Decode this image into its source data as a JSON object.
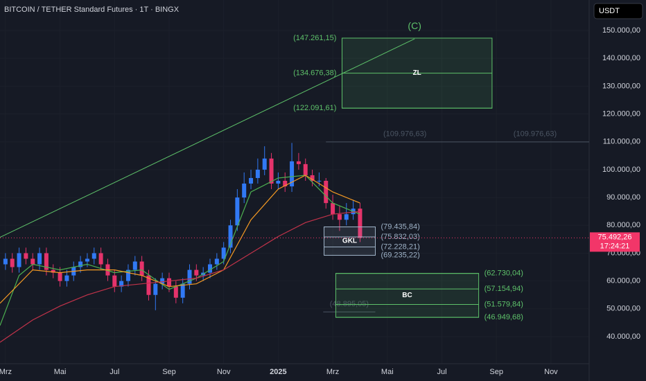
{
  "chart_data": {
    "type": "candlestick",
    "title": "BITCOIN / TETHER Standard Futures · 1T · BINGX",
    "currency": "USDT",
    "up_color": "#3179f5",
    "down_color": "#e5336b",
    "xlim": [
      -0.2,
      21.4
    ],
    "xticks": [
      {
        "value": 0,
        "label": "Mrz"
      },
      {
        "value": 2,
        "label": "Mai"
      },
      {
        "value": 4,
        "label": "Jul"
      },
      {
        "value": 6,
        "label": "Sep"
      },
      {
        "value": 8,
        "label": "Nov"
      },
      {
        "value": 10,
        "label": "2025"
      },
      {
        "value": 12,
        "label": "Mrz"
      },
      {
        "value": 14,
        "label": "Mai"
      },
      {
        "value": 16,
        "label": "Jul"
      },
      {
        "value": 18,
        "label": "Sep"
      },
      {
        "value": 20,
        "label": "Nov"
      }
    ],
    "ylim": [
      30300,
      160950
    ],
    "yticks": [
      {
        "value": 40000,
        "label": "40.000,00"
      },
      {
        "value": 50000,
        "label": "50.000,00"
      },
      {
        "value": 60000,
        "label": "60.000,00"
      },
      {
        "value": 70000,
        "label": "70.000,00"
      },
      {
        "value": 80000,
        "label": "80.000,00"
      },
      {
        "value": 90000,
        "label": "90.000,00"
      },
      {
        "value": 100000,
        "label": "100.000,00"
      },
      {
        "value": 110000,
        "label": "110.000,00"
      },
      {
        "value": 120000,
        "label": "120.000,00"
      },
      {
        "value": 130000,
        "label": "130.000,00"
      },
      {
        "value": 140000,
        "label": "140.000,00"
      },
      {
        "value": 150000,
        "label": "150.000,00"
      }
    ],
    "grid": true,
    "x": [
      0,
      0.25,
      0.5,
      0.75,
      1,
      1.25,
      1.5,
      1.75,
      2,
      2.25,
      2.5,
      2.75,
      3,
      3.25,
      3.5,
      3.75,
      4,
      4.25,
      4.5,
      4.75,
      5,
      5.25,
      5.5,
      5.75,
      6,
      6.25,
      6.5,
      6.75,
      7,
      7.25,
      7.5,
      7.75,
      8,
      8.25,
      8.5,
      8.75,
      9,
      9.25,
      9.5,
      9.75,
      10,
      10.25,
      10.5,
      10.75,
      11,
      11.25,
      11.5,
      11.75,
      12,
      12.25,
      12.5,
      12.75,
      13
    ],
    "open": [
      66000,
      68000,
      65000,
      70000,
      68000,
      66000,
      70000,
      64000,
      63000,
      60000,
      62000,
      65000,
      67000,
      68000,
      70000,
      66000,
      62000,
      58000,
      60000,
      64000,
      67000,
      62000,
      55000,
      59000,
      61000,
      58000,
      54000,
      59000,
      64000,
      62000,
      63000,
      66000,
      68000,
      72000,
      80000,
      90000,
      95000,
      97000,
      100000,
      104000,
      95000,
      96000,
      94000,
      103000,
      102000,
      98000,
      96000,
      96000,
      88000,
      84000,
      82000,
      84000,
      86000
    ],
    "high": [
      70000,
      70000,
      72000,
      72000,
      70000,
      72000,
      72000,
      66000,
      65000,
      64000,
      67000,
      69000,
      70000,
      72000,
      72000,
      68000,
      64000,
      62000,
      66000,
      69000,
      69000,
      64000,
      61000,
      63000,
      63000,
      60000,
      61000,
      66000,
      66000,
      65000,
      68000,
      70000,
      74000,
      82000,
      93000,
      99000,
      100000,
      104000,
      108400,
      106000,
      99000,
      99000,
      109600,
      106000,
      104000,
      100000,
      99000,
      97000,
      91000,
      87000,
      88000,
      89000,
      88000
    ],
    "low": [
      64000,
      63000,
      63000,
      66000,
      64000,
      64000,
      62000,
      61000,
      58000,
      58000,
      60000,
      63000,
      65000,
      66000,
      64000,
      60000,
      56000,
      56000,
      58000,
      62000,
      60000,
      53000,
      49500,
      57000,
      56000,
      52000,
      52000,
      57000,
      60000,
      60000,
      61000,
      64000,
      66000,
      70000,
      78000,
      88000,
      93000,
      95000,
      98000,
      93000,
      93000,
      92000,
      92000,
      100000,
      96000,
      94000,
      94000,
      86000,
      82000,
      78000,
      80000,
      82000,
      74000
    ],
    "close": [
      68000,
      65000,
      70000,
      68000,
      66000,
      70000,
      64000,
      63000,
      60000,
      62000,
      65000,
      67000,
      68000,
      70000,
      66000,
      62000,
      58000,
      60000,
      64000,
      67000,
      62000,
      55000,
      59000,
      61000,
      58000,
      54000,
      59000,
      64000,
      62000,
      63000,
      66000,
      68000,
      72000,
      80000,
      90000,
      95000,
      97000,
      100000,
      104000,
      95000,
      96000,
      94000,
      103000,
      102000,
      98000,
      96000,
      96000,
      88000,
      84000,
      82000,
      84000,
      86000,
      75492.26
    ],
    "moving_averages": [
      {
        "color": "#4caf50",
        "x": [
          -0.2,
          0.5,
          1,
          2,
          3,
          4,
          5,
          6,
          7,
          8,
          9,
          10,
          11,
          12,
          13
        ],
        "values": [
          44000,
          62000,
          66000,
          64000,
          66000,
          63000,
          64000,
          57000,
          61000,
          67000,
          92000,
          97000,
          98000,
          88000,
          84000
        ]
      },
      {
        "color": "#f59a23",
        "x": [
          -0.2,
          1,
          2,
          3,
          4,
          5,
          6,
          7,
          8,
          9,
          10,
          11,
          12,
          13
        ],
        "values": [
          52000,
          64000,
          63000,
          64000,
          64000,
          62000,
          58000,
          59000,
          64000,
          82000,
          93000,
          98000,
          92000,
          88000
        ]
      },
      {
        "color": "#c2334a",
        "x": [
          -0.2,
          1,
          2,
          3,
          4,
          5,
          6,
          7,
          8,
          9,
          10,
          11,
          12,
          13
        ],
        "values": [
          38000,
          46000,
          51000,
          55000,
          58000,
          59000,
          60000,
          61000,
          64000,
          70000,
          76000,
          81000,
          84000,
          85000
        ]
      }
    ],
    "last_price": {
      "value": 75492.26,
      "label": "75.492,26",
      "countdown": "17:24:21",
      "color": "#f23669"
    },
    "trendline": {
      "label": "(C)",
      "color": "#5ec26a",
      "x": [
        -0.2,
        15.0
      ],
      "values": [
        75700,
        147000
      ]
    },
    "zones": [
      {
        "name": "ZL",
        "x": [
          12.34,
          17.84
        ],
        "label_side": "left",
        "color": "#5ec26a",
        "levels": [
          {
            "value": 147261.15,
            "label": "(147.261,15)"
          },
          {
            "value": 134676.38,
            "label": "(134.676,38)"
          },
          {
            "value": 122091.61,
            "label": "(122.091,61)"
          }
        ]
      },
      {
        "name": "GKL",
        "x": [
          11.68,
          13.56
        ],
        "label_side": "right",
        "color": "#9fb3c8",
        "levels": [
          {
            "value": 79435.84,
            "label": "(79.435,84)"
          },
          {
            "value": 75832.03,
            "label": "(75.832,03)"
          },
          {
            "value": 72228.21,
            "label": "(72.228,21)"
          },
          {
            "value": 69235.22,
            "label": "(69.235,22)"
          }
        ]
      },
      {
        "name": "BC",
        "x": [
          12.11,
          17.35
        ],
        "label_side": "right",
        "color": "#5ec26a",
        "levels": [
          {
            "value": 62730.04,
            "label": "(62.730,04)"
          },
          {
            "value": 57154.94,
            "label": "(57.154,94)"
          },
          {
            "value": 51579.84,
            "label": "(51.579,84)"
          },
          {
            "value": 46949.68,
            "label": "(46.949,68)"
          }
        ]
      }
    ],
    "lines": [
      {
        "x": [
          11.75,
          21.4
        ],
        "value": 109976.63,
        "labels": [
          "(109.976,63)",
          "(109.976,63)"
        ]
      },
      {
        "x": [
          11.65,
          13.56
        ],
        "value": 48895.05,
        "labels": [
          "(48.895,05)"
        ]
      }
    ]
  }
}
